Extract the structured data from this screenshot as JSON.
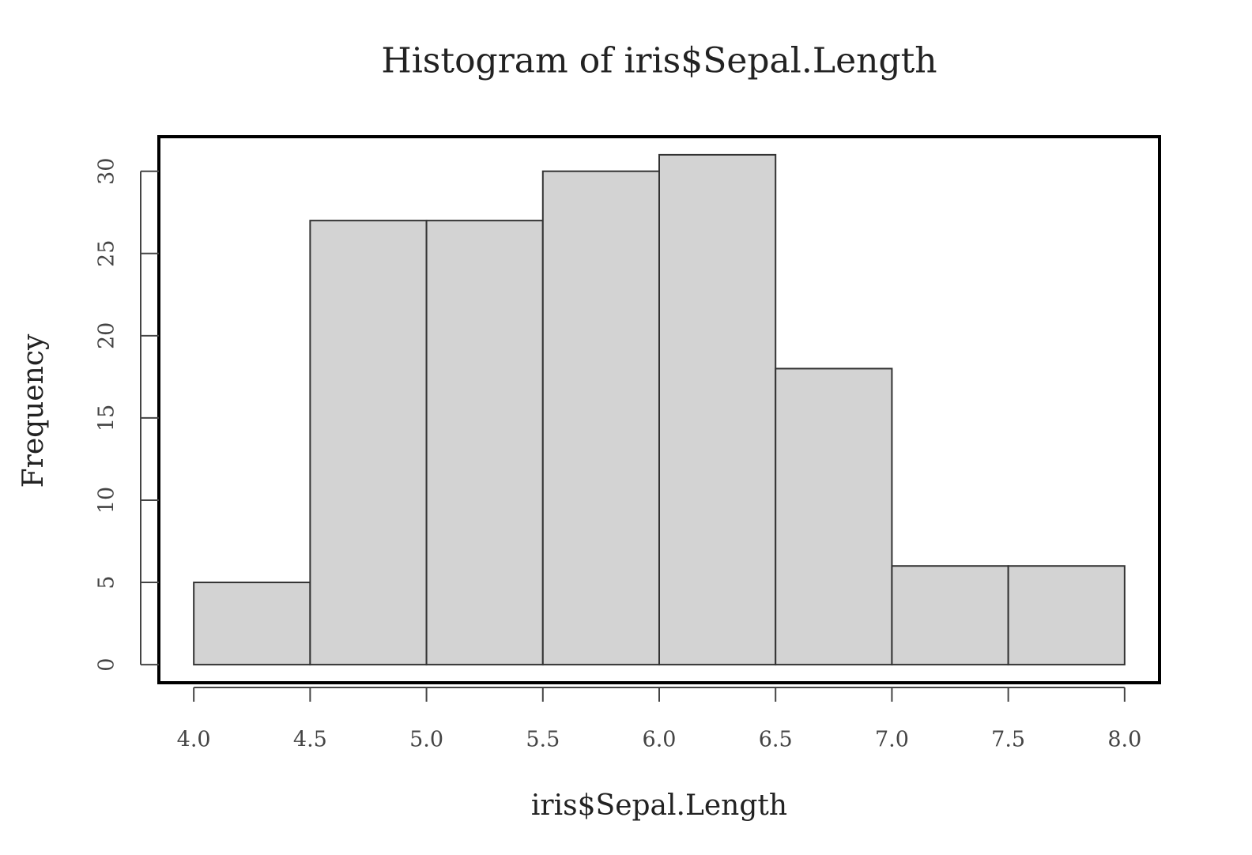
{
  "chart_data": {
    "type": "histogram",
    "title": "Histogram of iris$Sepal.Length",
    "xlabel": "iris$Sepal.Length",
    "ylabel": "Frequency",
    "bins": [
      4.0,
      4.5,
      5.0,
      5.5,
      6.0,
      6.5,
      7.0,
      7.5,
      8.0
    ],
    "values": [
      5,
      27,
      27,
      30,
      31,
      18,
      6,
      6
    ],
    "color": "#d3d3d3",
    "xlim": [
      3.85,
      8.15
    ],
    "ylim": [
      -1.1,
      32.1
    ],
    "xticks": [
      {
        "value": 4,
        "label": "4.0"
      },
      4.5,
      {
        "value": 5,
        "label": "5.0"
      },
      5.5,
      {
        "value": 6,
        "label": "6.0"
      },
      6.5,
      {
        "value": 7,
        "label": "7.0"
      },
      7.5,
      {
        "value": 8,
        "label": "8.0"
      }
    ],
    "yticks": [
      0,
      5,
      10,
      15,
      20,
      25,
      30
    ]
  }
}
